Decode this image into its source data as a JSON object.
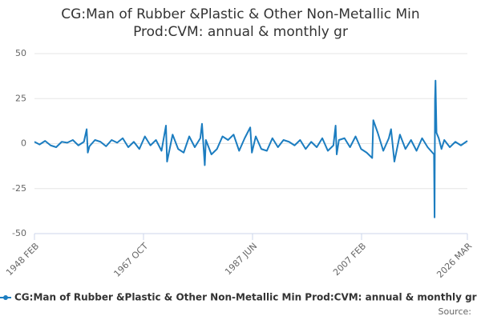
{
  "chart_data": {
    "type": "line",
    "title": "CG:Man of Rubber &Plastic & Other Non-Metallic Min Prod:CVM: annual & monthly gr",
    "source": "Source:",
    "x": [
      1948.083,
      1949,
      1950,
      1951,
      1952,
      1953,
      1954,
      1955,
      1956,
      1957,
      1957.5,
      1957.7,
      1958,
      1959,
      1960,
      1961,
      1962,
      1963,
      1964,
      1965,
      1966,
      1967,
      1968,
      1969,
      1970,
      1971,
      1971.8,
      1972,
      1973,
      1974,
      1975,
      1976,
      1977,
      1978,
      1978.3,
      1978.8,
      1979,
      1980,
      1981,
      1982,
      1983,
      1984,
      1985,
      1986,
      1987,
      1987.3,
      1988,
      1989,
      1990,
      1991,
      1992,
      1993,
      1994,
      1995,
      1996,
      1997,
      1998,
      1999,
      2000,
      2001,
      2002,
      2002.4,
      2002.6,
      2003,
      2004,
      2005,
      2006,
      2007,
      2008,
      2009,
      2009.2,
      2010,
      2011,
      2012,
      2012.4,
      2013,
      2014,
      2015,
      2016,
      2017,
      2018,
      2019,
      2020.15,
      2020.25,
      2020.33,
      2020.42,
      2020.6,
      2021,
      2021.5,
      2022,
      2023,
      2024,
      2025,
      2026.167
    ],
    "series": [
      {
        "name": "CG:Man of Rubber &Plastic & Other Non-Metallic Min Prod:CVM: annual & monthly gr",
        "color": "#1c7dc0",
        "values": [
          1,
          -0.5,
          1.5,
          -1,
          -2,
          1,
          0.5,
          2,
          -1,
          1,
          8,
          -5,
          -1.5,
          2,
          1,
          -1.5,
          2,
          0.5,
          3,
          -2,
          1,
          -3,
          4,
          -1,
          2,
          -4,
          10,
          -10,
          5,
          -3,
          -5,
          4,
          -2,
          3,
          11,
          -12,
          2,
          -6,
          -3,
          4,
          2,
          5,
          -4,
          3,
          9,
          -5,
          4,
          -3,
          -4,
          3,
          -2,
          2,
          1,
          -1,
          2,
          -3,
          1,
          -2,
          3,
          -4,
          -1,
          10,
          -6,
          2,
          3,
          -2,
          4,
          -3,
          -5,
          -8,
          13,
          6,
          -4,
          3,
          8,
          -10,
          5,
          -3,
          2,
          -4,
          3,
          -2,
          -6,
          -41,
          24,
          35,
          6,
          3,
          -3,
          2,
          -2,
          1,
          -1,
          1.5
        ]
      }
    ],
    "xlim": [
      1948.083,
      2026.167
    ],
    "xticks": [
      {
        "value": 1948.083,
        "label": "1948 FEB"
      },
      {
        "value": 1967.75,
        "label": "1967 OCT"
      },
      {
        "value": 1987.417,
        "label": "1987 JUN"
      },
      {
        "value": 2007.083,
        "label": "2007 FEB"
      },
      {
        "value": 2026.167,
        "label": "2026 MAR"
      }
    ],
    "ylim": [
      -50,
      50
    ],
    "yticks": [
      -50,
      -25,
      0,
      25,
      50
    ],
    "grid": true
  }
}
